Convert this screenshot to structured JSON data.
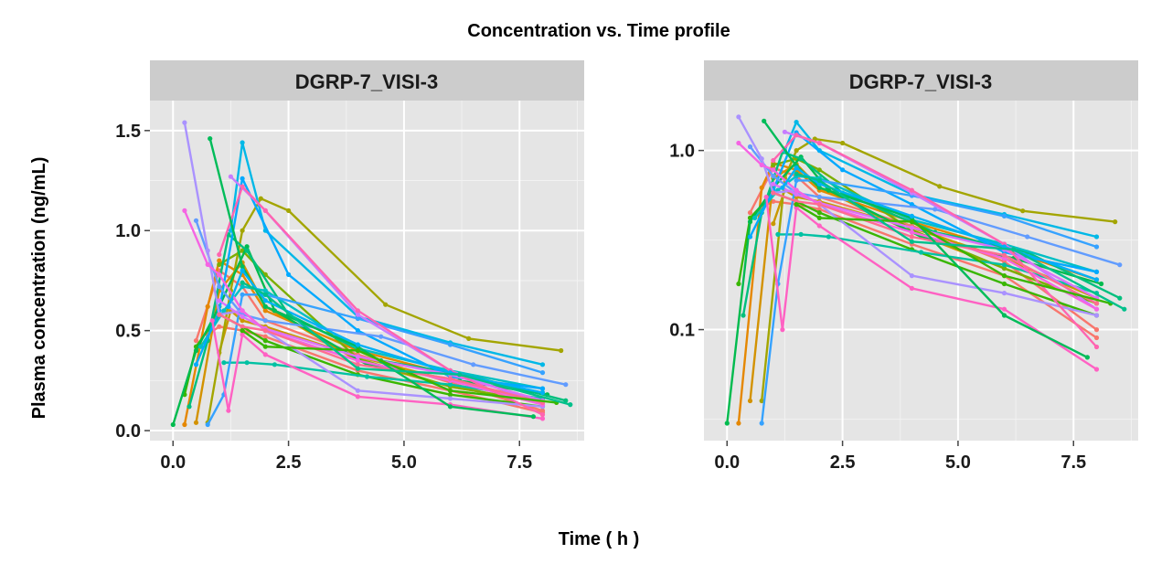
{
  "chart_data": {
    "type": "line",
    "title": "Concentration vs. Time profile",
    "xlabel": "Time ( h )",
    "ylabel": "Plasma concentration (ng/mL)",
    "grid": true,
    "legend": "none",
    "panels": [
      {
        "strip": "DGRP-7_VISI-3",
        "yscale": "linear",
        "xlim": [
          -0.5,
          8.9
        ],
        "ylim": [
          -0.05,
          1.65
        ],
        "xticks": [
          {
            "value": 0,
            "label": "0.0"
          },
          {
            "value": 2.5,
            "label": "2.5"
          },
          {
            "value": 5,
            "label": "5.0"
          },
          {
            "value": 7.5,
            "label": "7.5"
          }
        ],
        "yticks": [
          {
            "value": 0,
            "label": "0.0"
          },
          {
            "value": 0.5,
            "label": "0.5"
          },
          {
            "value": 1,
            "label": "1.0"
          },
          {
            "value": 1.5,
            "label": "1.5"
          }
        ]
      },
      {
        "strip": "DGRP-7_VISI-3",
        "yscale": "log",
        "xlim": [
          -0.5,
          8.9
        ],
        "ylim": [
          0.024,
          1.9
        ],
        "xticks": [
          {
            "value": 0,
            "label": "0.0"
          },
          {
            "value": 2.5,
            "label": "2.5"
          },
          {
            "value": 5,
            "label": "5.0"
          },
          {
            "value": 7.5,
            "label": "7.5"
          }
        ],
        "yticks": [
          {
            "value": 0.1,
            "label": "0.1"
          },
          {
            "value": 1,
            "label": "1.0"
          }
        ]
      }
    ],
    "series": [
      {
        "color": "#F8766D",
        "points": [
          [
            0.5,
            0.45
          ],
          [
            1.0,
            0.8
          ],
          [
            1.5,
            0.72
          ],
          [
            2.0,
            0.55
          ],
          [
            4.0,
            0.38
          ],
          [
            6.0,
            0.24
          ],
          [
            8.0,
            0.1
          ]
        ]
      },
      {
        "color": "#F8766D",
        "points": [
          [
            0.75,
            0.48
          ],
          [
            1.0,
            0.52
          ],
          [
            1.5,
            0.5
          ],
          [
            2.0,
            0.47
          ],
          [
            4.0,
            0.3
          ],
          [
            6.0,
            0.2
          ],
          [
            8.0,
            0.09
          ]
        ]
      },
      {
        "color": "#E58700",
        "points": [
          [
            0.25,
            0.03
          ],
          [
            0.75,
            0.62
          ],
          [
            1.0,
            0.85
          ],
          [
            1.5,
            0.78
          ],
          [
            2.0,
            0.6
          ],
          [
            4.0,
            0.4
          ],
          [
            6.0,
            0.28
          ],
          [
            8.0,
            0.19
          ]
        ]
      },
      {
        "color": "#D39200",
        "points": [
          [
            0.5,
            0.04
          ],
          [
            1.0,
            0.7
          ],
          [
            1.5,
            0.84
          ],
          [
            2.0,
            0.62
          ],
          [
            4.0,
            0.35
          ],
          [
            6.0,
            0.22
          ],
          [
            8.0,
            0.14
          ]
        ]
      },
      {
        "color": "#C99800",
        "points": [
          [
            1.0,
            0.39
          ],
          [
            1.25,
            0.6
          ],
          [
            1.5,
            0.55
          ],
          [
            2.0,
            0.52
          ],
          [
            4.0,
            0.37
          ],
          [
            6.0,
            0.25
          ],
          [
            8.0,
            0.15
          ]
        ]
      },
      {
        "color": "#A3A500",
        "points": [
          [
            0.75,
            0.04
          ],
          [
            1.25,
            0.7
          ],
          [
            1.5,
            1.0
          ],
          [
            1.9,
            1.16
          ],
          [
            2.5,
            1.1
          ],
          [
            4.6,
            0.63
          ],
          [
            6.4,
            0.46
          ],
          [
            8.4,
            0.4
          ]
        ]
      },
      {
        "color": "#7CAE00",
        "points": [
          [
            1.0,
            0.83
          ],
          [
            1.5,
            0.9
          ],
          [
            2.0,
            0.78
          ],
          [
            4.0,
            0.36
          ],
          [
            6.0,
            0.22
          ],
          [
            8.0,
            0.14
          ]
        ]
      },
      {
        "color": "#39B600",
        "points": [
          [
            0.25,
            0.18
          ],
          [
            0.5,
            0.42
          ],
          [
            1.0,
            0.58
          ],
          [
            1.5,
            0.52
          ],
          [
            2.0,
            0.45
          ],
          [
            4.0,
            0.28
          ],
          [
            6.0,
            0.18
          ],
          [
            8.0,
            0.12
          ]
        ]
      },
      {
        "color": "#00BB4E",
        "points": [
          [
            0.0,
            0.03
          ],
          [
            0.5,
            0.4
          ],
          [
            1.0,
            0.62
          ],
          [
            1.6,
            0.92
          ],
          [
            2.2,
            0.6
          ],
          [
            4.2,
            0.33
          ],
          [
            6.2,
            0.25
          ],
          [
            8.1,
            0.18
          ]
        ]
      },
      {
        "color": "#00BF7D",
        "points": [
          [
            0.35,
            0.12
          ],
          [
            0.75,
            0.45
          ],
          [
            1.2,
            0.98
          ],
          [
            1.6,
            0.9
          ],
          [
            2.5,
            0.58
          ],
          [
            4.5,
            0.35
          ],
          [
            6.5,
            0.27
          ],
          [
            8.5,
            0.15
          ]
        ]
      },
      {
        "color": "#00C1A3",
        "points": [
          [
            1.1,
            0.34
          ],
          [
            1.6,
            0.34
          ],
          [
            2.2,
            0.33
          ],
          [
            4.2,
            0.27
          ],
          [
            6.0,
            0.23
          ],
          [
            8.0,
            0.16
          ]
        ]
      },
      {
        "color": "#00BFC4",
        "points": [
          [
            0.6,
            0.42
          ],
          [
            1.1,
            0.6
          ],
          [
            1.5,
            0.72
          ],
          [
            2.0,
            0.7
          ],
          [
            4.0,
            0.41
          ],
          [
            6.0,
            0.3
          ],
          [
            8.0,
            0.21
          ]
        ]
      },
      {
        "color": "#00B8E7",
        "points": [
          [
            1.25,
            1.0
          ],
          [
            1.5,
            1.44
          ],
          [
            2.0,
            1.0
          ],
          [
            4.0,
            0.57
          ],
          [
            6.0,
            0.44
          ],
          [
            8.0,
            0.33
          ]
        ]
      },
      {
        "color": "#00A9FF",
        "points": [
          [
            0.5,
            0.33
          ],
          [
            1.0,
            0.6
          ],
          [
            1.5,
            1.26
          ],
          [
            2.5,
            0.78
          ],
          [
            4.0,
            0.5
          ],
          [
            6.0,
            0.27
          ],
          [
            8.0,
            0.21
          ]
        ]
      },
      {
        "color": "#35A2FF",
        "points": [
          [
            0.75,
            0.03
          ],
          [
            1.1,
            0.18
          ],
          [
            1.5,
            0.68
          ],
          [
            2.0,
            0.68
          ],
          [
            4.0,
            0.56
          ],
          [
            6.0,
            0.43
          ],
          [
            8.0,
            0.29
          ]
        ]
      },
      {
        "color": "#619CFF",
        "points": [
          [
            0.5,
            1.05
          ],
          [
            1.0,
            0.72
          ],
          [
            1.5,
            0.58
          ],
          [
            2.0,
            0.55
          ],
          [
            4.5,
            0.47
          ],
          [
            6.5,
            0.33
          ],
          [
            8.5,
            0.23
          ]
        ]
      },
      {
        "color": "#AA92FF",
        "points": [
          [
            0.25,
            1.54
          ],
          [
            0.75,
            0.9
          ],
          [
            1.0,
            0.58
          ],
          [
            1.5,
            0.6
          ],
          [
            2.0,
            0.5
          ],
          [
            4.0,
            0.2
          ],
          [
            6.0,
            0.16
          ],
          [
            8.0,
            0.12
          ]
        ]
      },
      {
        "color": "#C77CFF",
        "points": [
          [
            1.25,
            1.27
          ],
          [
            2.0,
            1.1
          ],
          [
            4.0,
            0.58
          ],
          [
            6.0,
            0.3
          ],
          [
            8.0,
            0.13
          ]
        ]
      },
      {
        "color": "#DC71FA",
        "points": [
          [
            1.0,
            0.65
          ],
          [
            1.5,
            0.57
          ],
          [
            2.0,
            0.51
          ],
          [
            4.0,
            0.37
          ],
          [
            6.0,
            0.28
          ],
          [
            8.0,
            0.15
          ]
        ]
      },
      {
        "color": "#F564E3",
        "points": [
          [
            0.25,
            1.1
          ],
          [
            0.75,
            0.83
          ],
          [
            1.0,
            0.78
          ],
          [
            1.5,
            0.6
          ],
          [
            2.0,
            0.5
          ],
          [
            4.0,
            0.35
          ],
          [
            6.0,
            0.25
          ],
          [
            8.0,
            0.13
          ]
        ]
      },
      {
        "color": "#FF61C3",
        "points": [
          [
            0.85,
            0.55
          ],
          [
            1.2,
            0.1
          ],
          [
            1.5,
            0.48
          ],
          [
            2.0,
            0.38
          ],
          [
            4.0,
            0.17
          ],
          [
            6.0,
            0.13
          ],
          [
            8.0,
            0.06
          ]
        ]
      },
      {
        "color": "#FF64B0",
        "points": [
          [
            1.0,
            0.88
          ],
          [
            1.5,
            1.22
          ],
          [
            2.0,
            1.1
          ],
          [
            4.0,
            0.6
          ],
          [
            6.0,
            0.3
          ],
          [
            8.0,
            0.08
          ]
        ]
      },
      {
        "color": "#FF6C91",
        "points": [
          [
            1.0,
            0.58
          ],
          [
            1.5,
            0.52
          ],
          [
            2.0,
            0.5
          ],
          [
            4.0,
            0.33
          ],
          [
            6.0,
            0.26
          ],
          [
            8.0,
            0.14
          ]
        ]
      },
      {
        "color": "#00BC59",
        "points": [
          [
            0.8,
            1.46
          ],
          [
            1.5,
            0.82
          ],
          [
            2.0,
            0.62
          ],
          [
            4.0,
            0.42
          ],
          [
            6.0,
            0.12
          ],
          [
            7.8,
            0.07
          ]
        ]
      },
      {
        "color": "#00B0F6",
        "points": [
          [
            1.2,
            0.62
          ],
          [
            1.5,
            0.8
          ],
          [
            2.0,
            0.65
          ],
          [
            4.0,
            0.43
          ],
          [
            6.0,
            0.29
          ],
          [
            8.0,
            0.19
          ]
        ]
      },
      {
        "color": "#39B600",
        "points": [
          [
            1.5,
            0.5
          ],
          [
            2.0,
            0.42
          ],
          [
            4.0,
            0.4
          ],
          [
            6.0,
            0.2
          ],
          [
            8.3,
            0.14
          ]
        ]
      },
      {
        "color": "#00C08B",
        "points": [
          [
            1.5,
            0.74
          ],
          [
            2.0,
            0.68
          ],
          [
            4.0,
            0.31
          ],
          [
            6.2,
            0.28
          ],
          [
            8.6,
            0.13
          ]
        ]
      }
    ]
  }
}
